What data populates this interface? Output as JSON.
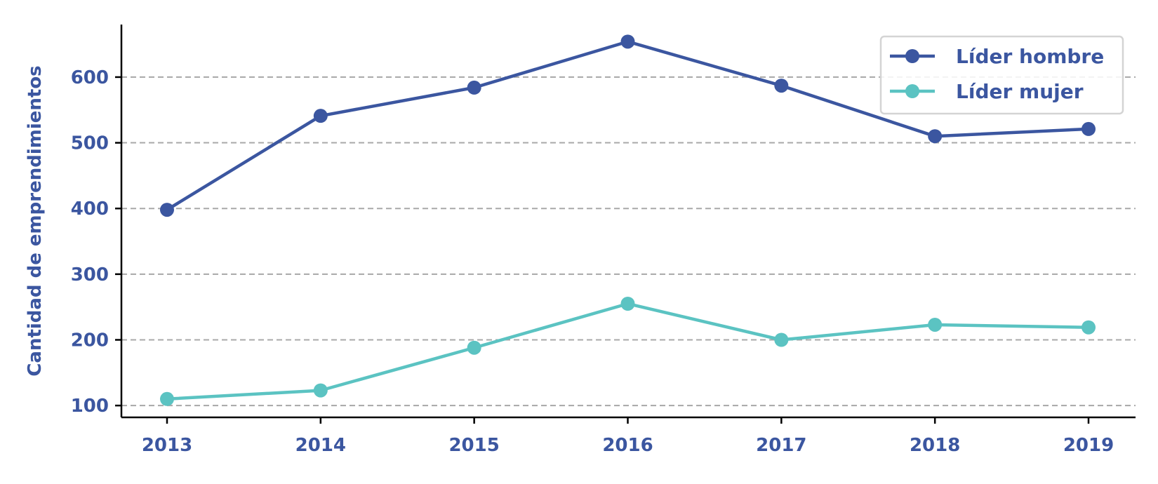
{
  "chart_data": {
    "type": "line",
    "title": "",
    "xlabel": "",
    "ylabel": "Cantidad de emprendimientos",
    "categories": [
      "2013",
      "2014",
      "2015",
      "2016",
      "2017",
      "2018",
      "2019"
    ],
    "yticks": [
      100,
      200,
      300,
      400,
      500,
      600
    ],
    "ylim": [
      82,
      680
    ],
    "grid": "horizontal dashed",
    "legend_position": "top-right",
    "series": [
      {
        "name": "Líder hombre",
        "color": "#3b56a0",
        "values": [
          398,
          541,
          584,
          654,
          587,
          510,
          521
        ]
      },
      {
        "name": "Líder mujer",
        "color": "#5bc3c2",
        "values": [
          110,
          123,
          188,
          255,
          200,
          223,
          219
        ]
      }
    ]
  }
}
